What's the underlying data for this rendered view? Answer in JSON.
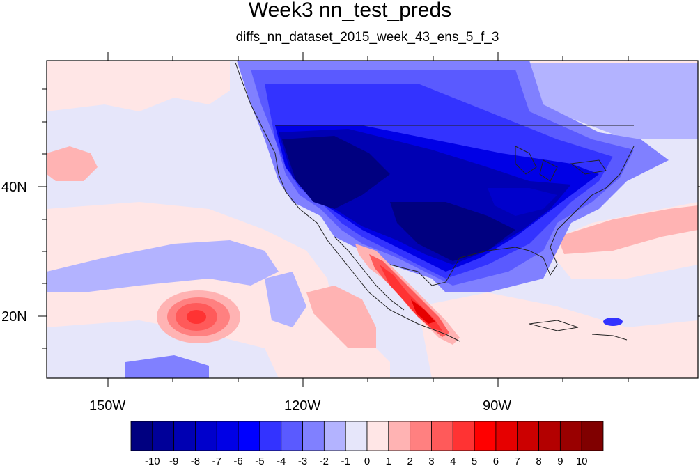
{
  "title": "Week3 nn_test_preds",
  "subtitle": "diffs_nn_dataset_2015_week_43_ens_5_f_3",
  "lon_labels": [
    "150W",
    "120W",
    "90W"
  ],
  "lat_labels": [
    "40N",
    "20N"
  ],
  "colorbar": {
    "tick_labels": [
      "-10",
      "-9",
      "-8",
      "-7",
      "-6",
      "-5",
      "-4",
      "-3",
      "-2",
      "-1",
      "0",
      "1",
      "2",
      "3",
      "4",
      "5",
      "6",
      "7",
      "8",
      "9",
      "10"
    ],
    "colors": [
      "#000080",
      "#000099",
      "#0000b3",
      "#0000cc",
      "#0000e6",
      "#0000ff",
      "#3333ff",
      "#5a5aff",
      "#8080ff",
      "#b3b3ff",
      "#e6e6fa",
      "#ffe6e6",
      "#ffb3b3",
      "#ff8080",
      "#ff5a5a",
      "#ff3333",
      "#ff0000",
      "#e60000",
      "#cc0000",
      "#b30000",
      "#990000",
      "#800000"
    ]
  }
}
